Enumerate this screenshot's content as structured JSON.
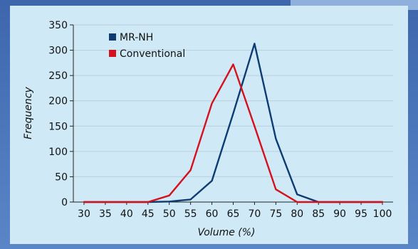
{
  "chart_data": {
    "type": "line",
    "xlabel": "Volume (%)",
    "ylabel": "Frequency",
    "x": [
      30,
      35,
      40,
      45,
      50,
      55,
      60,
      65,
      70,
      75,
      80,
      85,
      90,
      95,
      100
    ],
    "xlim": [
      27.5,
      102.5
    ],
    "ylim": [
      0,
      350
    ],
    "yticks": [
      0,
      50,
      100,
      150,
      200,
      250,
      300,
      350
    ],
    "xticks": [
      30,
      35,
      40,
      45,
      50,
      55,
      60,
      65,
      70,
      75,
      80,
      85,
      90,
      95,
      100
    ],
    "grid": "horizontal",
    "legend_position": "top-left",
    "series": [
      {
        "name": "MR-NH",
        "color": "#0d3b73",
        "values": [
          0,
          0,
          0,
          0,
          1,
          5,
          42,
          175,
          313,
          125,
          15,
          0,
          0,
          0,
          0
        ]
      },
      {
        "name": "Conventional",
        "color": "#d4121e",
        "values": [
          0,
          0,
          0,
          0,
          13,
          63,
          195,
          272,
          150,
          25,
          0,
          0,
          0,
          0,
          0
        ]
      }
    ]
  }
}
